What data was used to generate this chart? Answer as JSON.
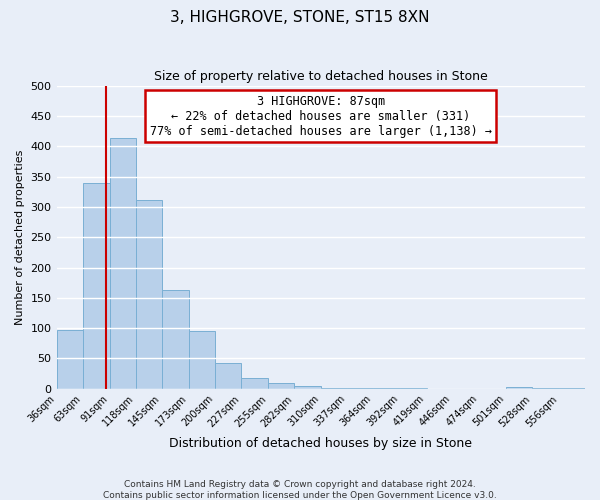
{
  "title": "3, HIGHGROVE, STONE, ST15 8XN",
  "subtitle": "Size of property relative to detached houses in Stone",
  "xlabel": "Distribution of detached houses by size in Stone",
  "ylabel": "Number of detached properties",
  "bar_color": "#b8d0ea",
  "bar_edge_color": "#7aafd4",
  "background_color": "#e8eef8",
  "grid_color": "#ffffff",
  "bin_edges": [
    36,
    63,
    91,
    118,
    145,
    173,
    200,
    227,
    255,
    282,
    310,
    337,
    364,
    392,
    419,
    446,
    474,
    501,
    528,
    556,
    583
  ],
  "bar_heights": [
    97,
    340,
    413,
    312,
    163,
    95,
    42,
    18,
    10,
    5,
    2,
    1,
    1,
    1,
    0,
    0,
    0,
    3,
    1,
    2
  ],
  "red_line_x": 87,
  "annotation_title": "3 HIGHGROVE: 87sqm",
  "annotation_line1": "← 22% of detached houses are smaller (331)",
  "annotation_line2": "77% of semi-detached houses are larger (1,138) →",
  "annotation_box_color": "#ffffff",
  "annotation_box_edge": "#cc0000",
  "red_line_color": "#cc0000",
  "ylim": [
    0,
    500
  ],
  "yticks": [
    0,
    50,
    100,
    150,
    200,
    250,
    300,
    350,
    400,
    450,
    500
  ],
  "footer1": "Contains HM Land Registry data © Crown copyright and database right 2024.",
  "footer2": "Contains public sector information licensed under the Open Government Licence v3.0."
}
